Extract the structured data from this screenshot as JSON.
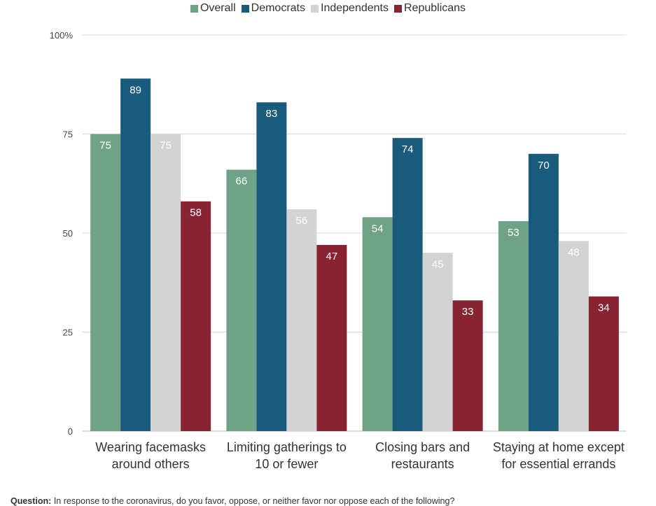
{
  "legend": {
    "items": [
      {
        "label": "Overall",
        "color": "#6fa287"
      },
      {
        "label": "Democrats",
        "color": "#1a5a7a"
      },
      {
        "label": "Independents",
        "color": "#d3d3d3"
      },
      {
        "label": "Republicans",
        "color": "#882431"
      }
    ]
  },
  "footnote": {
    "label": "Question:",
    "text": "In response to the coronavirus, do you favor, oppose, or neither favor nor oppose each of the following?"
  },
  "chart_data": {
    "type": "bar",
    "categories": [
      [
        "Wearing facemasks",
        "around others"
      ],
      [
        "Limiting gatherings to",
        "10 or fewer"
      ],
      [
        "Closing bars and",
        "restaurants"
      ],
      [
        "Staying at home except",
        "for essential errands"
      ]
    ],
    "series": [
      {
        "name": "Overall",
        "color": "#6fa287",
        "values": [
          75,
          66,
          54,
          53
        ],
        "label_color": "#ffffff"
      },
      {
        "name": "Democrats",
        "color": "#1a5a7a",
        "values": [
          89,
          83,
          74,
          70
        ],
        "label_color": "#ffffff"
      },
      {
        "name": "Independents",
        "color": "#d3d3d3",
        "values": [
          75,
          56,
          45,
          48
        ],
        "label_color": "#ffffff"
      },
      {
        "name": "Republicans",
        "color": "#882431",
        "values": [
          58,
          47,
          33,
          34
        ],
        "label_color": "#ffffff"
      }
    ],
    "yticks": [
      "0",
      "25",
      "50",
      "75",
      "100%"
    ],
    "ylim": [
      0,
      100
    ],
    "grid": true,
    "legend_position": "top"
  }
}
